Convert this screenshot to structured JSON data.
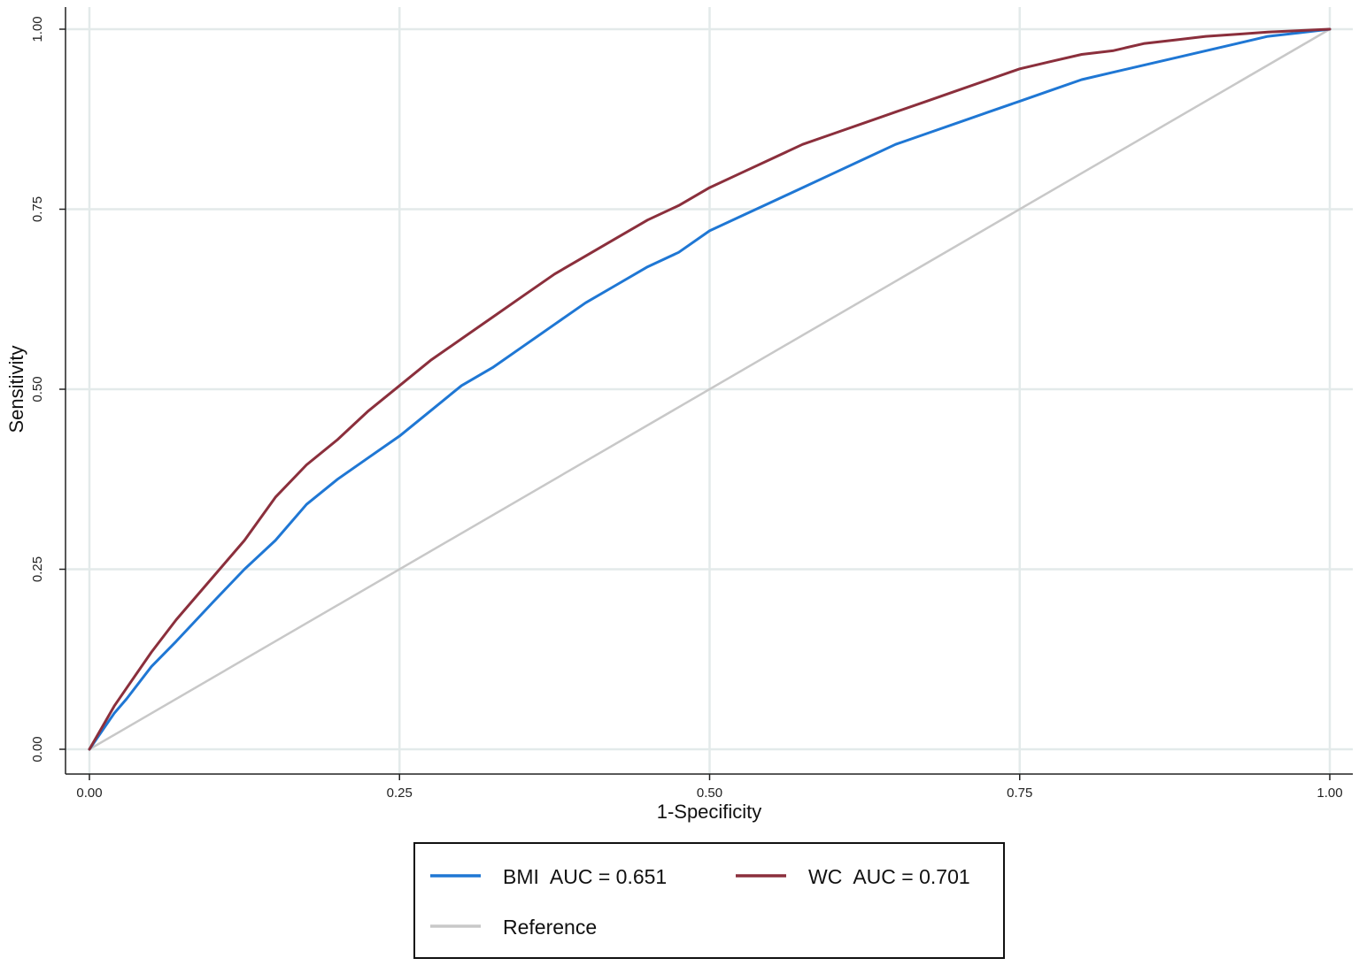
{
  "chart_data": {
    "type": "line",
    "title": "",
    "xlabel": "1-Specificity",
    "ylabel": "Sensitivity",
    "xlim": [
      0,
      1
    ],
    "ylim": [
      0,
      1
    ],
    "x_ticks": [
      "0.00",
      "0.25",
      "0.50",
      "0.75",
      "1.00"
    ],
    "y_ticks": [
      "0.00",
      "0.25",
      "0.50",
      "0.75",
      "1.00"
    ],
    "grid": true,
    "legend_position": "bottom",
    "series": [
      {
        "key": "bmi",
        "legend_parts": [
          "BMI",
          "AUC = 0.651"
        ],
        "color": "#1f77d4",
        "points": [
          [
            0,
            0
          ],
          [
            0.01,
            0.025
          ],
          [
            0.02,
            0.05
          ],
          [
            0.03,
            0.07
          ],
          [
            0.05,
            0.115
          ],
          [
            0.07,
            0.15
          ],
          [
            0.1,
            0.205
          ],
          [
            0.125,
            0.25
          ],
          [
            0.15,
            0.29
          ],
          [
            0.175,
            0.34
          ],
          [
            0.2,
            0.375
          ],
          [
            0.225,
            0.405
          ],
          [
            0.25,
            0.435
          ],
          [
            0.275,
            0.47
          ],
          [
            0.3,
            0.505
          ],
          [
            0.325,
            0.53
          ],
          [
            0.35,
            0.56
          ],
          [
            0.375,
            0.59
          ],
          [
            0.4,
            0.62
          ],
          [
            0.425,
            0.645
          ],
          [
            0.45,
            0.67
          ],
          [
            0.475,
            0.69
          ],
          [
            0.5,
            0.72
          ],
          [
            0.525,
            0.74
          ],
          [
            0.55,
            0.76
          ],
          [
            0.575,
            0.78
          ],
          [
            0.6,
            0.8
          ],
          [
            0.625,
            0.82
          ],
          [
            0.65,
            0.84
          ],
          [
            0.675,
            0.855
          ],
          [
            0.7,
            0.87
          ],
          [
            0.725,
            0.885
          ],
          [
            0.75,
            0.9
          ],
          [
            0.775,
            0.915
          ],
          [
            0.8,
            0.93
          ],
          [
            0.825,
            0.94
          ],
          [
            0.85,
            0.95
          ],
          [
            0.875,
            0.96
          ],
          [
            0.9,
            0.97
          ],
          [
            0.925,
            0.98
          ],
          [
            0.95,
            0.99
          ],
          [
            0.975,
            0.995
          ],
          [
            1,
            1
          ]
        ]
      },
      {
        "key": "wc",
        "legend_parts": [
          "WC",
          "AUC = 0.701"
        ],
        "color": "#8b2f3c",
        "points": [
          [
            0,
            0
          ],
          [
            0.01,
            0.03
          ],
          [
            0.02,
            0.06
          ],
          [
            0.03,
            0.085
          ],
          [
            0.05,
            0.135
          ],
          [
            0.07,
            0.18
          ],
          [
            0.1,
            0.24
          ],
          [
            0.125,
            0.29
          ],
          [
            0.15,
            0.35
          ],
          [
            0.175,
            0.395
          ],
          [
            0.2,
            0.43
          ],
          [
            0.225,
            0.47
          ],
          [
            0.25,
            0.505
          ],
          [
            0.275,
            0.54
          ],
          [
            0.3,
            0.57
          ],
          [
            0.325,
            0.6
          ],
          [
            0.35,
            0.63
          ],
          [
            0.375,
            0.66
          ],
          [
            0.4,
            0.685
          ],
          [
            0.425,
            0.71
          ],
          [
            0.45,
            0.735
          ],
          [
            0.475,
            0.755
          ],
          [
            0.5,
            0.78
          ],
          [
            0.525,
            0.8
          ],
          [
            0.55,
            0.82
          ],
          [
            0.575,
            0.84
          ],
          [
            0.6,
            0.855
          ],
          [
            0.625,
            0.87
          ],
          [
            0.65,
            0.885
          ],
          [
            0.675,
            0.9
          ],
          [
            0.7,
            0.915
          ],
          [
            0.725,
            0.93
          ],
          [
            0.75,
            0.945
          ],
          [
            0.775,
            0.955
          ],
          [
            0.8,
            0.965
          ],
          [
            0.825,
            0.97
          ],
          [
            0.85,
            0.98
          ],
          [
            0.875,
            0.985
          ],
          [
            0.9,
            0.99
          ],
          [
            0.925,
            0.993
          ],
          [
            0.95,
            0.996
          ],
          [
            0.975,
            0.998
          ],
          [
            1,
            1
          ]
        ]
      },
      {
        "key": "reference",
        "legend_parts": [
          "Reference"
        ],
        "color": "#c8c8c8",
        "points": [
          [
            0,
            0
          ],
          [
            1,
            1
          ]
        ]
      }
    ]
  }
}
